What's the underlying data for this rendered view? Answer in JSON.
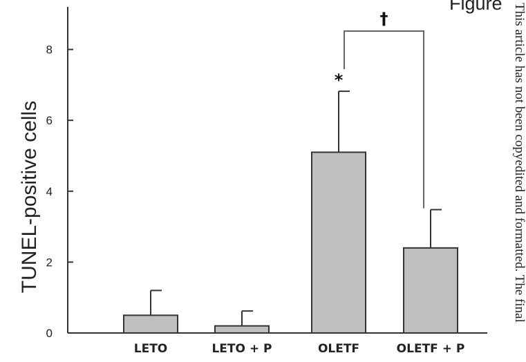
{
  "figure_label": "Figure",
  "side_note": "This article has not been copyedited and formatted. The final",
  "chart_data": {
    "type": "bar",
    "categories": [
      "LETO",
      "LETO + P",
      "OLETF",
      "OLETF + P"
    ],
    "values": [
      0.5,
      0.2,
      5.1,
      2.4
    ],
    "errors": [
      0.7,
      0.42,
      1.72,
      1.08
    ],
    "ylabel": "TUNEL-positive cells",
    "xlabel": "",
    "ylim": [
      0,
      9.2
    ],
    "yticks": [
      0,
      2,
      4,
      6,
      8
    ],
    "bar_color": "#bfbfbf",
    "annotations": [
      {
        "category": "OLETF",
        "text": "*"
      },
      {
        "between": [
          "OLETF",
          "OLETF + P"
        ],
        "text": "†"
      }
    ]
  }
}
